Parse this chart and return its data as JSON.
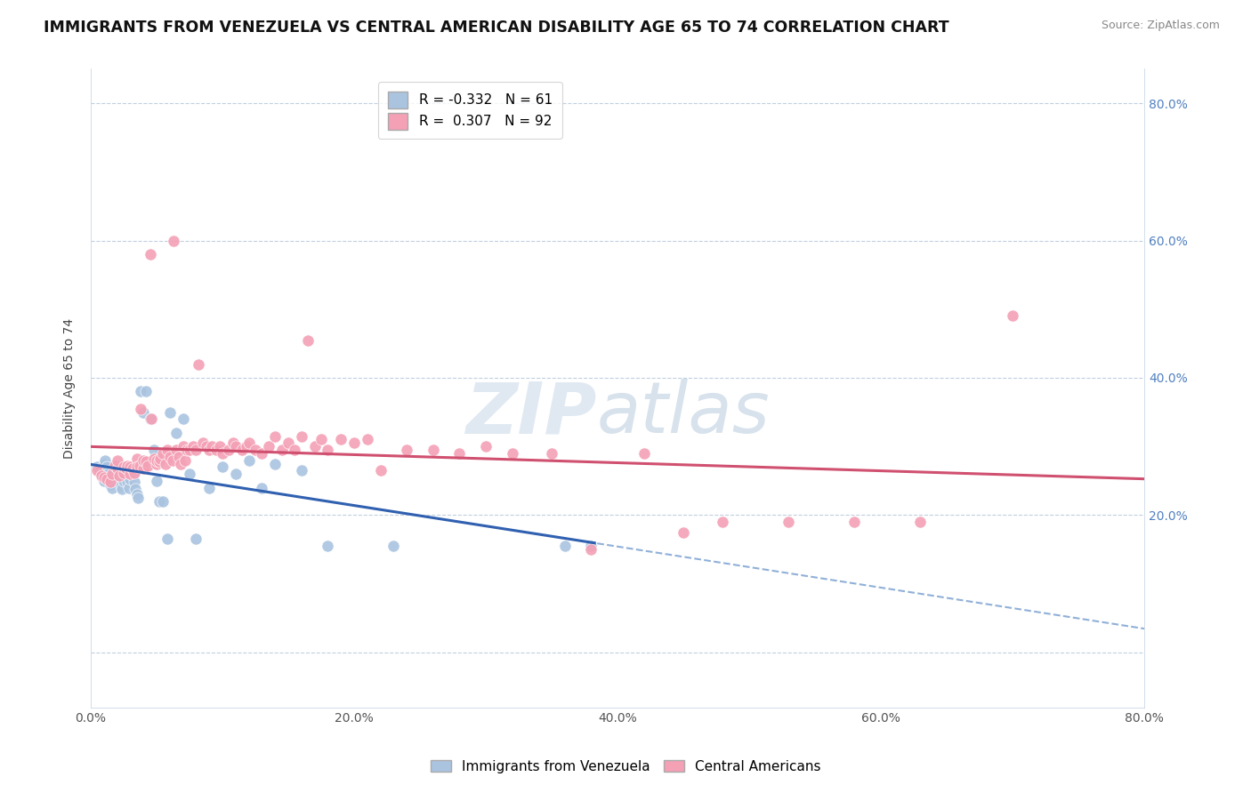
{
  "title": "IMMIGRANTS FROM VENEZUELA VS CENTRAL AMERICAN DISABILITY AGE 65 TO 74 CORRELATION CHART",
  "source": "Source: ZipAtlas.com",
  "ylabel": "Disability Age 65 to 74",
  "R_blue": -0.332,
  "N_blue": 61,
  "R_pink": 0.307,
  "N_pink": 92,
  "blue_color": "#aac4e0",
  "pink_color": "#f4a0b5",
  "blue_line_color": "#3060b0",
  "pink_line_color": "#d05070",
  "blue_line_dashed_color": "#90b0d8",
  "legend_blue_label": "Immigrants from Venezuela",
  "legend_pink_label": "Central Americans",
  "title_fontsize": 12.5,
  "axis_label_fontsize": 10,
  "tick_fontsize": 10,
  "background_color": "#ffffff",
  "grid_color": "#c0d0e0",
  "xlim": [
    0.0,
    0.8
  ],
  "ylim": [
    -0.08,
    0.85
  ],
  "ytick_values": [
    0.0,
    0.2,
    0.4,
    0.6,
    0.8
  ],
  "xtick_values": [
    0.0,
    0.2,
    0.4,
    0.6,
    0.8
  ],
  "blue_scatter_x": [
    0.005,
    0.007,
    0.008,
    0.009,
    0.01,
    0.01,
    0.011,
    0.012,
    0.013,
    0.014,
    0.015,
    0.015,
    0.016,
    0.017,
    0.018,
    0.019,
    0.02,
    0.02,
    0.021,
    0.022,
    0.023,
    0.024,
    0.025,
    0.025,
    0.026,
    0.027,
    0.028,
    0.029,
    0.03,
    0.03,
    0.031,
    0.032,
    0.033,
    0.034,
    0.035,
    0.036,
    0.038,
    0.04,
    0.042,
    0.045,
    0.048,
    0.05,
    0.052,
    0.055,
    0.058,
    0.06,
    0.065,
    0.07,
    0.075,
    0.08,
    0.09,
    0.1,
    0.11,
    0.12,
    0.13,
    0.14,
    0.16,
    0.18,
    0.23,
    0.36,
    0.38
  ],
  "blue_scatter_y": [
    0.27,
    0.265,
    0.26,
    0.255,
    0.25,
    0.275,
    0.28,
    0.27,
    0.26,
    0.255,
    0.25,
    0.245,
    0.24,
    0.26,
    0.255,
    0.27,
    0.265,
    0.26,
    0.255,
    0.248,
    0.242,
    0.238,
    0.25,
    0.27,
    0.26,
    0.255,
    0.248,
    0.24,
    0.26,
    0.252,
    0.265,
    0.258,
    0.248,
    0.238,
    0.23,
    0.225,
    0.38,
    0.35,
    0.38,
    0.34,
    0.295,
    0.25,
    0.22,
    0.22,
    0.165,
    0.35,
    0.32,
    0.34,
    0.26,
    0.165,
    0.24,
    0.27,
    0.26,
    0.28,
    0.24,
    0.275,
    0.265,
    0.155,
    0.155,
    0.155,
    0.155
  ],
  "pink_scatter_x": [
    0.005,
    0.008,
    0.01,
    0.012,
    0.015,
    0.016,
    0.018,
    0.02,
    0.02,
    0.022,
    0.025,
    0.025,
    0.027,
    0.028,
    0.03,
    0.03,
    0.032,
    0.033,
    0.035,
    0.035,
    0.037,
    0.038,
    0.04,
    0.04,
    0.042,
    0.043,
    0.045,
    0.046,
    0.048,
    0.05,
    0.05,
    0.052,
    0.053,
    0.055,
    0.057,
    0.058,
    0.06,
    0.062,
    0.063,
    0.065,
    0.067,
    0.068,
    0.07,
    0.072,
    0.073,
    0.075,
    0.078,
    0.08,
    0.082,
    0.085,
    0.088,
    0.09,
    0.092,
    0.095,
    0.098,
    0.1,
    0.105,
    0.108,
    0.11,
    0.115,
    0.118,
    0.12,
    0.125,
    0.13,
    0.135,
    0.14,
    0.145,
    0.15,
    0.155,
    0.16,
    0.165,
    0.17,
    0.175,
    0.18,
    0.19,
    0.2,
    0.21,
    0.22,
    0.24,
    0.26,
    0.28,
    0.3,
    0.32,
    0.35,
    0.38,
    0.42,
    0.45,
    0.48,
    0.53,
    0.58,
    0.63,
    0.7
  ],
  "pink_scatter_y": [
    0.265,
    0.258,
    0.255,
    0.252,
    0.248,
    0.26,
    0.272,
    0.268,
    0.28,
    0.258,
    0.262,
    0.27,
    0.268,
    0.272,
    0.26,
    0.27,
    0.268,
    0.262,
    0.282,
    0.27,
    0.272,
    0.355,
    0.268,
    0.28,
    0.278,
    0.272,
    0.58,
    0.34,
    0.282,
    0.275,
    0.28,
    0.278,
    0.282,
    0.29,
    0.275,
    0.295,
    0.285,
    0.28,
    0.6,
    0.295,
    0.285,
    0.275,
    0.3,
    0.28,
    0.295,
    0.295,
    0.3,
    0.295,
    0.42,
    0.305,
    0.3,
    0.295,
    0.3,
    0.295,
    0.3,
    0.29,
    0.295,
    0.305,
    0.3,
    0.295,
    0.3,
    0.305,
    0.295,
    0.29,
    0.3,
    0.315,
    0.295,
    0.305,
    0.295,
    0.315,
    0.455,
    0.3,
    0.31,
    0.295,
    0.31,
    0.305,
    0.31,
    0.265,
    0.295,
    0.295,
    0.29,
    0.3,
    0.29,
    0.29,
    0.15,
    0.29,
    0.175,
    0.19,
    0.19,
    0.19,
    0.19,
    0.49
  ]
}
